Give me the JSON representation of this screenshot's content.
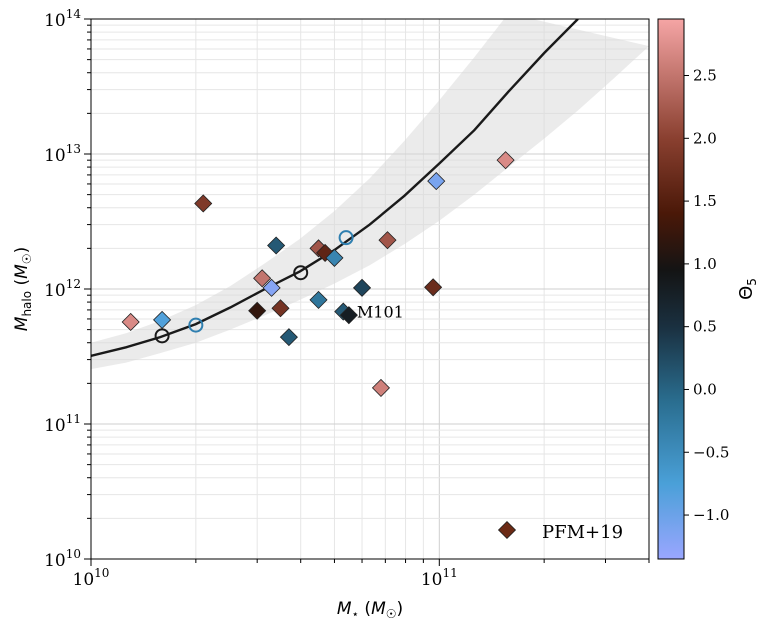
{
  "chart_data": {
    "type": "scatter",
    "xscale": "log",
    "yscale": "log",
    "xlim": [
      10000000000.0,
      400000000000.0
    ],
    "ylim": [
      10000000000.0,
      100000000000000.0
    ],
    "x_tick_labels": [
      {
        "value": 10000000000.0,
        "base": "10",
        "exp": "10"
      },
      {
        "value": 100000000000.0,
        "base": "10",
        "exp": "11"
      }
    ],
    "y_tick_labels": [
      {
        "value": 10000000000.0,
        "base": "10",
        "exp": "10"
      },
      {
        "value": 100000000000.0,
        "base": "10",
        "exp": "11"
      },
      {
        "value": 1000000000000.0,
        "base": "10",
        "exp": "12"
      },
      {
        "value": 10000000000000.0,
        "base": "10",
        "exp": "13"
      },
      {
        "value": 100000000000000.0,
        "base": "10",
        "exp": "14"
      }
    ],
    "xlabel": "M⋆ (M☉)",
    "ylabel": "Mhalo (M☉)",
    "grid": true,
    "relation_curve": {
      "name": "SHMR",
      "color": "#1a1a1a",
      "points": [
        [
          10000000000.0,
          320000000000.0
        ],
        [
          12600000000.0,
          370000000000.0
        ],
        [
          15800000000.0,
          440000000000.0
        ],
        [
          20000000000.0,
          550000000000.0
        ],
        [
          25100000000.0,
          730000000000.0
        ],
        [
          31600000000.0,
          1000000000000.0
        ],
        [
          39800000000.0,
          1350000000000.0
        ],
        [
          50100000000.0,
          1950000000000.0
        ],
        [
          63100000000.0,
          3000000000000.0
        ],
        [
          79400000000.0,
          4900000000000.0
        ],
        [
          100000000000.0,
          8500000000000.0
        ],
        [
          126000000000.0,
          15000000000000.0
        ],
        [
          158000000000.0,
          29000000000000.0
        ],
        [
          200000000000.0,
          56000000000000.0
        ],
        [
          250000000000.0,
          100000000000000.0
        ]
      ]
    },
    "scatter_band": {
      "upper": [
        [
          10000000000.0,
          400000000000.0
        ],
        [
          12600000000.0,
          470000000000.0
        ],
        [
          15800000000.0,
          580000000000.0
        ],
        [
          20000000000.0,
          760000000000.0
        ],
        [
          25100000000.0,
          1050000000000.0
        ],
        [
          31600000000.0,
          1550000000000.0
        ],
        [
          39800000000.0,
          2350000000000.0
        ],
        [
          50100000000.0,
          3800000000000.0
        ],
        [
          63100000000.0,
          6600000000000.0
        ],
        [
          79400000000.0,
          12500000000000.0
        ],
        [
          100000000000.0,
          25000000000000.0
        ],
        [
          126000000000.0,
          52000000000000.0
        ],
        [
          158000000000.0,
          110000000000000.0
        ]
      ],
      "lower": [
        [
          10000000000.0,
          255000000000.0
        ],
        [
          12600000000.0,
          285000000000.0
        ],
        [
          15800000000.0,
          335000000000.0
        ],
        [
          20000000000.0,
          400000000000.0
        ],
        [
          25100000000.0,
          500000000000.0
        ],
        [
          31600000000.0,
          640000000000.0
        ],
        [
          39800000000.0,
          830000000000.0
        ],
        [
          50100000000.0,
          1100000000000.0
        ],
        [
          63100000000.0,
          1500000000000.0
        ],
        [
          79400000000.0,
          2150000000000.0
        ],
        [
          100000000000.0,
          3200000000000.0
        ],
        [
          126000000000.0,
          5000000000000.0
        ],
        [
          158000000000.0,
          8000000000000.0
        ],
        [
          200000000000.0,
          13000000000000.0
        ],
        [
          250000000000.0,
          21000000000000.0
        ],
        [
          316000000000.0,
          36000000000000.0
        ],
        [
          400000000000.0,
          63000000000000.0
        ]
      ]
    },
    "open_circles": [
      {
        "x": 16000000000.0,
        "y": 450000000000.0,
        "color": "#1a1a1a"
      },
      {
        "x": 20000000000.0,
        "y": 540000000000.0,
        "color": "#2f7fb0"
      },
      {
        "x": 40000000000.0,
        "y": 1320000000000.0,
        "color": "#1a1a1a"
      },
      {
        "x": 54000000000.0,
        "y": 2400000000000.0,
        "color": "#2f7fb0"
      }
    ],
    "series": [
      {
        "name": "PFM+19",
        "marker": "diamond",
        "legend_color": "#6b2a15",
        "points": [
          {
            "x": 13000000000.0,
            "y": 570000000000.0,
            "theta5": 2.7
          },
          {
            "x": 16000000000.0,
            "y": 590000000000.0,
            "theta5": -0.8
          },
          {
            "x": 21000000000.0,
            "y": 4300000000000.0,
            "theta5": 1.9
          },
          {
            "x": 30000000000.0,
            "y": 690000000000.0,
            "theta5": 1.2
          },
          {
            "x": 31000000000.0,
            "y": 1200000000000.0,
            "theta5": 2.5
          },
          {
            "x": 33000000000.0,
            "y": 1020000000000.0,
            "theta5": -1.2
          },
          {
            "x": 34000000000.0,
            "y": 2100000000000.0,
            "theta5": 0.1
          },
          {
            "x": 35000000000.0,
            "y": 720000000000.0,
            "theta5": 1.8
          },
          {
            "x": 37000000000.0,
            "y": 440000000000.0,
            "theta5": 0.1
          },
          {
            "x": 45000000000.0,
            "y": 830000000000.0,
            "theta5": -0.2
          },
          {
            "x": 45000000000.0,
            "y": 2000000000000.0,
            "theta5": 2.2
          },
          {
            "x": 47000000000.0,
            "y": 1850000000000.0,
            "theta5": 1.6
          },
          {
            "x": 50000000000.0,
            "y": 1700000000000.0,
            "theta5": -0.4
          },
          {
            "x": 53000000000.0,
            "y": 680000000000.0,
            "theta5": 0.1
          },
          {
            "x": 55000000000.0,
            "y": 640000000000.0,
            "theta5": 0.8
          },
          {
            "x": 60000000000.0,
            "y": 1020000000000.0,
            "theta5": 0.3
          },
          {
            "x": 68000000000.0,
            "y": 185000000000.0,
            "theta5": 2.6
          },
          {
            "x": 71000000000.0,
            "y": 2300000000000.0,
            "theta5": 2.2
          },
          {
            "x": 96000000000.0,
            "y": 1030000000000.0,
            "theta5": 1.7
          },
          {
            "x": 98000000000.0,
            "y": 6300000000000.0,
            "theta5": -1.1
          },
          {
            "x": 155000000000.0,
            "y": 9000000000000.0,
            "theta5": 2.7
          }
        ]
      }
    ],
    "annotations": [
      {
        "text": "M101",
        "x": 58000000000.0,
        "y": 680000000000.0
      }
    ],
    "legend": {
      "position": "bottom-right",
      "label": "PFM+19"
    },
    "colorbar": {
      "label": "Θ5",
      "range": [
        -1.35,
        2.95
      ],
      "ticks": [
        {
          "value": -1.0,
          "label": "−1.0"
        },
        {
          "value": -0.5,
          "label": "−0.5"
        },
        {
          "value": 0.0,
          "label": "0.0"
        },
        {
          "value": 0.5,
          "label": "0.5"
        },
        {
          "value": 1.0,
          "label": "1.0"
        },
        {
          "value": 1.5,
          "label": "1.5"
        },
        {
          "value": 2.0,
          "label": "2.0"
        },
        {
          "value": 2.5,
          "label": "2.5"
        }
      ],
      "stops": [
        {
          "value": -1.35,
          "color": "#9aa6ff"
        },
        {
          "value": -0.75,
          "color": "#4aa0d8"
        },
        {
          "value": -0.1,
          "color": "#2a6e90"
        },
        {
          "value": 0.5,
          "color": "#1a3040"
        },
        {
          "value": 0.95,
          "color": "#141414"
        },
        {
          "value": 1.4,
          "color": "#4a1808"
        },
        {
          "value": 2.0,
          "color": "#8a4030"
        },
        {
          "value": 2.95,
          "color": "#f5a5a5"
        }
      ]
    }
  }
}
